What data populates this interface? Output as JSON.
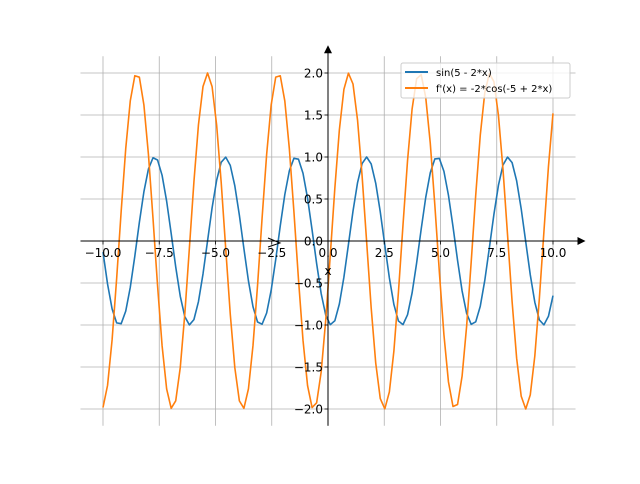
{
  "chart_data": {
    "type": "line",
    "title": "",
    "xlabel": "x",
    "ylabel": "",
    "xlim": [
      -11,
      11
    ],
    "ylim": [
      -2.2,
      2.2
    ],
    "grid": true,
    "legend_placement": "top-right",
    "x_range": [
      -10,
      10
    ],
    "samples": 100,
    "x_ticks": [
      -10,
      -7.5,
      -5,
      -2.5,
      0,
      2.5,
      5,
      7.5,
      10
    ],
    "x_tick_labels": [
      "−10.0",
      "−7.5",
      "−5.0",
      "−2.5",
      "0.0",
      "2.5",
      "5.0",
      "7.5",
      "10.0"
    ],
    "y_ticks": [
      -2,
      -1.5,
      -1,
      -0.5,
      0,
      0.5,
      1,
      1.5,
      2
    ],
    "y_tick_labels": [
      "−2.0",
      "−1.5",
      "−1.0",
      "−0.5",
      "0.0",
      "0.5",
      "1.0",
      "1.5",
      "2.0"
    ],
    "series": [
      {
        "name": "sin(5 - 2*x)",
        "expression": "sin(5 - 2*x)",
        "color": "#1f77b4"
      },
      {
        "name": "f'(x) = -2*cos(-5 + 2*x)",
        "expression": "-2*cos(-5 + 2*x)",
        "color": "#ff7f0e"
      }
    ]
  }
}
